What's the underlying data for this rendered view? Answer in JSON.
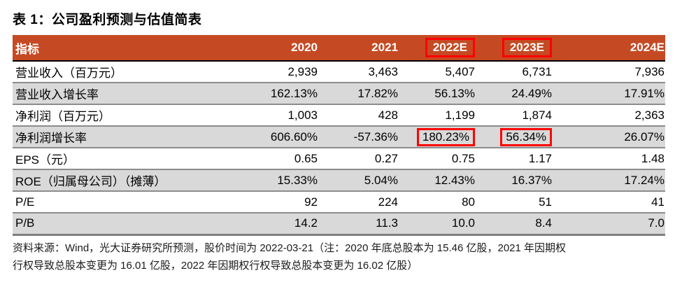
{
  "title": "表 1：公司盈利预测与估值简表",
  "table": {
    "columns": [
      "指标",
      "2020",
      "2021",
      "2022E",
      "2023E",
      "2024E"
    ],
    "highlighted_columns": [
      3,
      4
    ],
    "rows": [
      {
        "label": "营业收入（百万元）",
        "values": [
          "2,939",
          "3,463",
          "5,407",
          "6,731",
          "7,936"
        ]
      },
      {
        "label": "营业收入增长率",
        "values": [
          "162.13%",
          "17.82%",
          "56.13%",
          "24.49%",
          "17.91%"
        ]
      },
      {
        "label": "净利润（百万元）",
        "values": [
          "1,003",
          "428",
          "1,199",
          "1,874",
          "2,363"
        ]
      },
      {
        "label": "净利润增长率",
        "values": [
          "606.60%",
          "-57.36%",
          "180.23%",
          "56.34%",
          "26.07%"
        ],
        "highlighted": [
          2,
          3
        ]
      },
      {
        "label": "EPS（元）",
        "values": [
          "0.65",
          "0.27",
          "0.75",
          "1.17",
          "1.48"
        ]
      },
      {
        "label": "ROE（归属母公司）（摊薄）",
        "values": [
          "15.33%",
          "5.04%",
          "12.43%",
          "16.37%",
          "17.24%"
        ]
      },
      {
        "label": "P/E",
        "values": [
          "92",
          "224",
          "80",
          "51",
          "41"
        ]
      },
      {
        "label": "P/B",
        "values": [
          "14.2",
          "11.3",
          "10.0",
          "8.4",
          "7.0"
        ]
      }
    ]
  },
  "footer": {
    "lines": [
      "资料来源：Wind，光大证券研究所预测，股价时间为 2022-03-21（注：2020 年底总股本为 15.46 亿股，2021 年因期权",
      "行权导致总股本变更为 16.01 亿股，2022 年因期权行权导致总股本变更为 16.02 亿股）"
    ]
  },
  "colors": {
    "header_bg": "#C54A24",
    "header_text": "#FFFFFF",
    "row_alt_bg": "#D9D9D9",
    "row_border": "#8C8C8C",
    "header_bottom_border": "#000000",
    "highlight_box": "#FF0000"
  }
}
